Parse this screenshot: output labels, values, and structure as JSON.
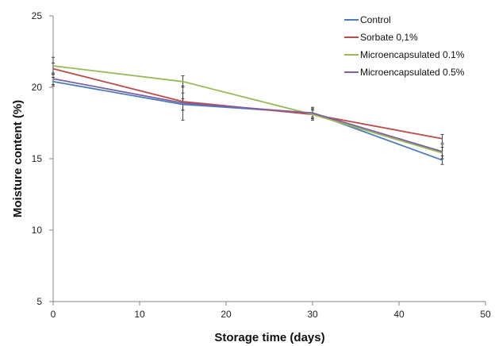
{
  "chart_data": {
    "type": "line",
    "title": "",
    "xlabel": "Storage time (days)",
    "ylabel": "Moisture content (%)",
    "xlim": [
      0,
      50
    ],
    "ylim": [
      5,
      25
    ],
    "xticks": [
      0,
      10,
      20,
      30,
      40,
      50
    ],
    "yticks": [
      5,
      10,
      15,
      20,
      25
    ],
    "grid": false,
    "legend_position": "top-right",
    "x": [
      0,
      15,
      30,
      45
    ],
    "series": [
      {
        "name": "Control",
        "color": "#4a7ebb",
        "values": [
          20.4,
          18.8,
          18.2,
          14.9
        ],
        "errors": [
          0.3,
          0.4,
          0.3,
          0.3
        ]
      },
      {
        "name": "Sorbate 0,1%",
        "color": "#be4b48",
        "values": [
          21.3,
          19.0,
          18.1,
          16.4
        ],
        "errors": [
          0.4,
          0.6,
          0.3,
          0.3
        ]
      },
      {
        "name": "Microencapsulated 0.1%",
        "color": "#98b954",
        "values": [
          21.5,
          20.4,
          18.1,
          15.4
        ],
        "errors": [
          0.6,
          0.4,
          0.4,
          0.4
        ]
      },
      {
        "name": "Microencapsulated 0.5%",
        "color": "#7d60a0",
        "values": [
          20.6,
          18.9,
          18.2,
          15.5
        ],
        "errors": [
          0.4,
          1.2,
          0.4,
          0.5
        ]
      }
    ]
  }
}
